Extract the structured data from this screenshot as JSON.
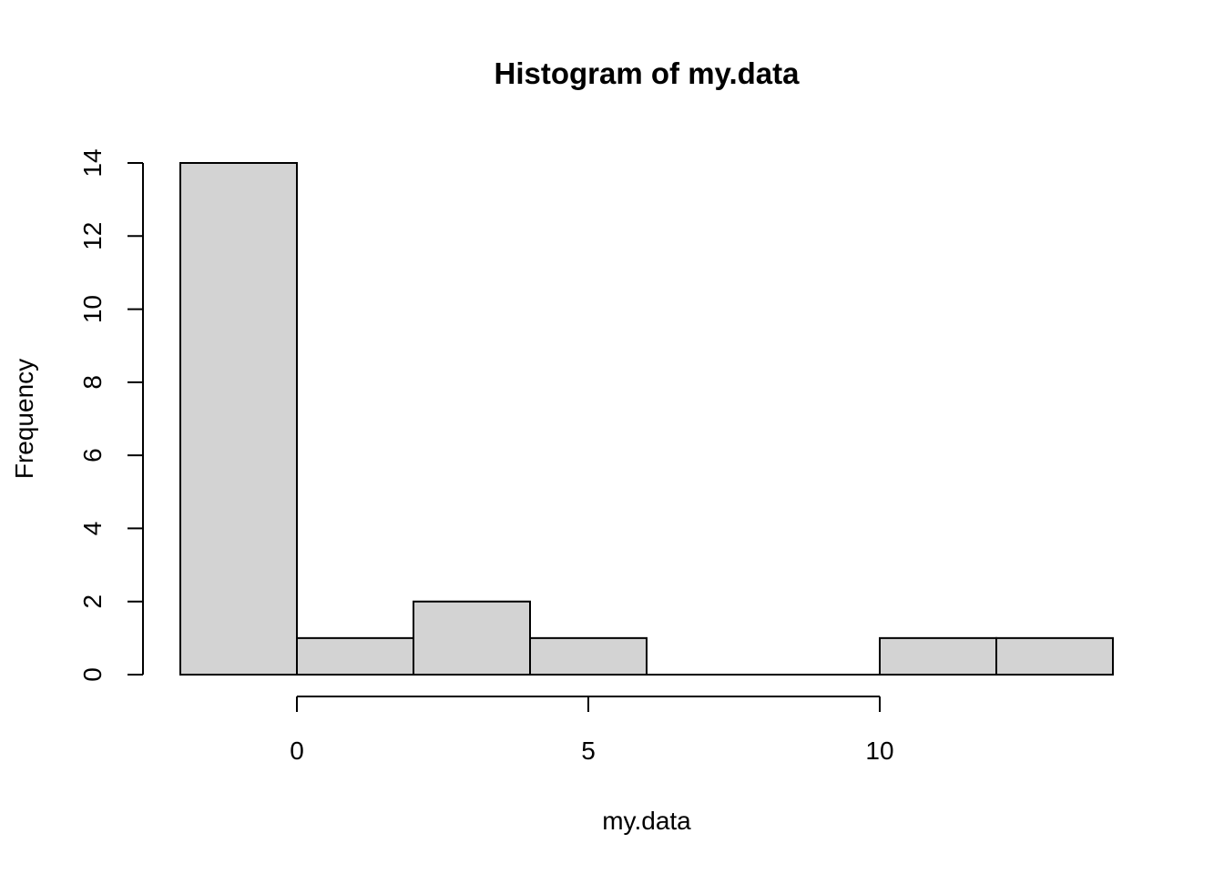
{
  "chart_data": {
    "type": "bar",
    "title": "Histogram of my.data",
    "xlabel": "my.data",
    "ylabel": "Frequency",
    "bins": [
      {
        "start": -2,
        "end": 0,
        "count": 14
      },
      {
        "start": 0,
        "end": 2,
        "count": 1
      },
      {
        "start": 2,
        "end": 4,
        "count": 2
      },
      {
        "start": 4,
        "end": 6,
        "count": 1
      },
      {
        "start": 6,
        "end": 8,
        "count": 0
      },
      {
        "start": 8,
        "end": 10,
        "count": 0
      },
      {
        "start": 10,
        "end": 12,
        "count": 1
      },
      {
        "start": 12,
        "end": 14,
        "count": 1
      }
    ],
    "x_ticks": [
      0,
      5,
      10
    ],
    "y_ticks": [
      0,
      2,
      4,
      6,
      8,
      10,
      12,
      14
    ],
    "xlim": [
      -2,
      14
    ],
    "ylim": [
      0,
      14
    ],
    "bar_fill": "#d3d3d3",
    "bar_stroke": "#000000",
    "grid": false,
    "legend": "none"
  }
}
